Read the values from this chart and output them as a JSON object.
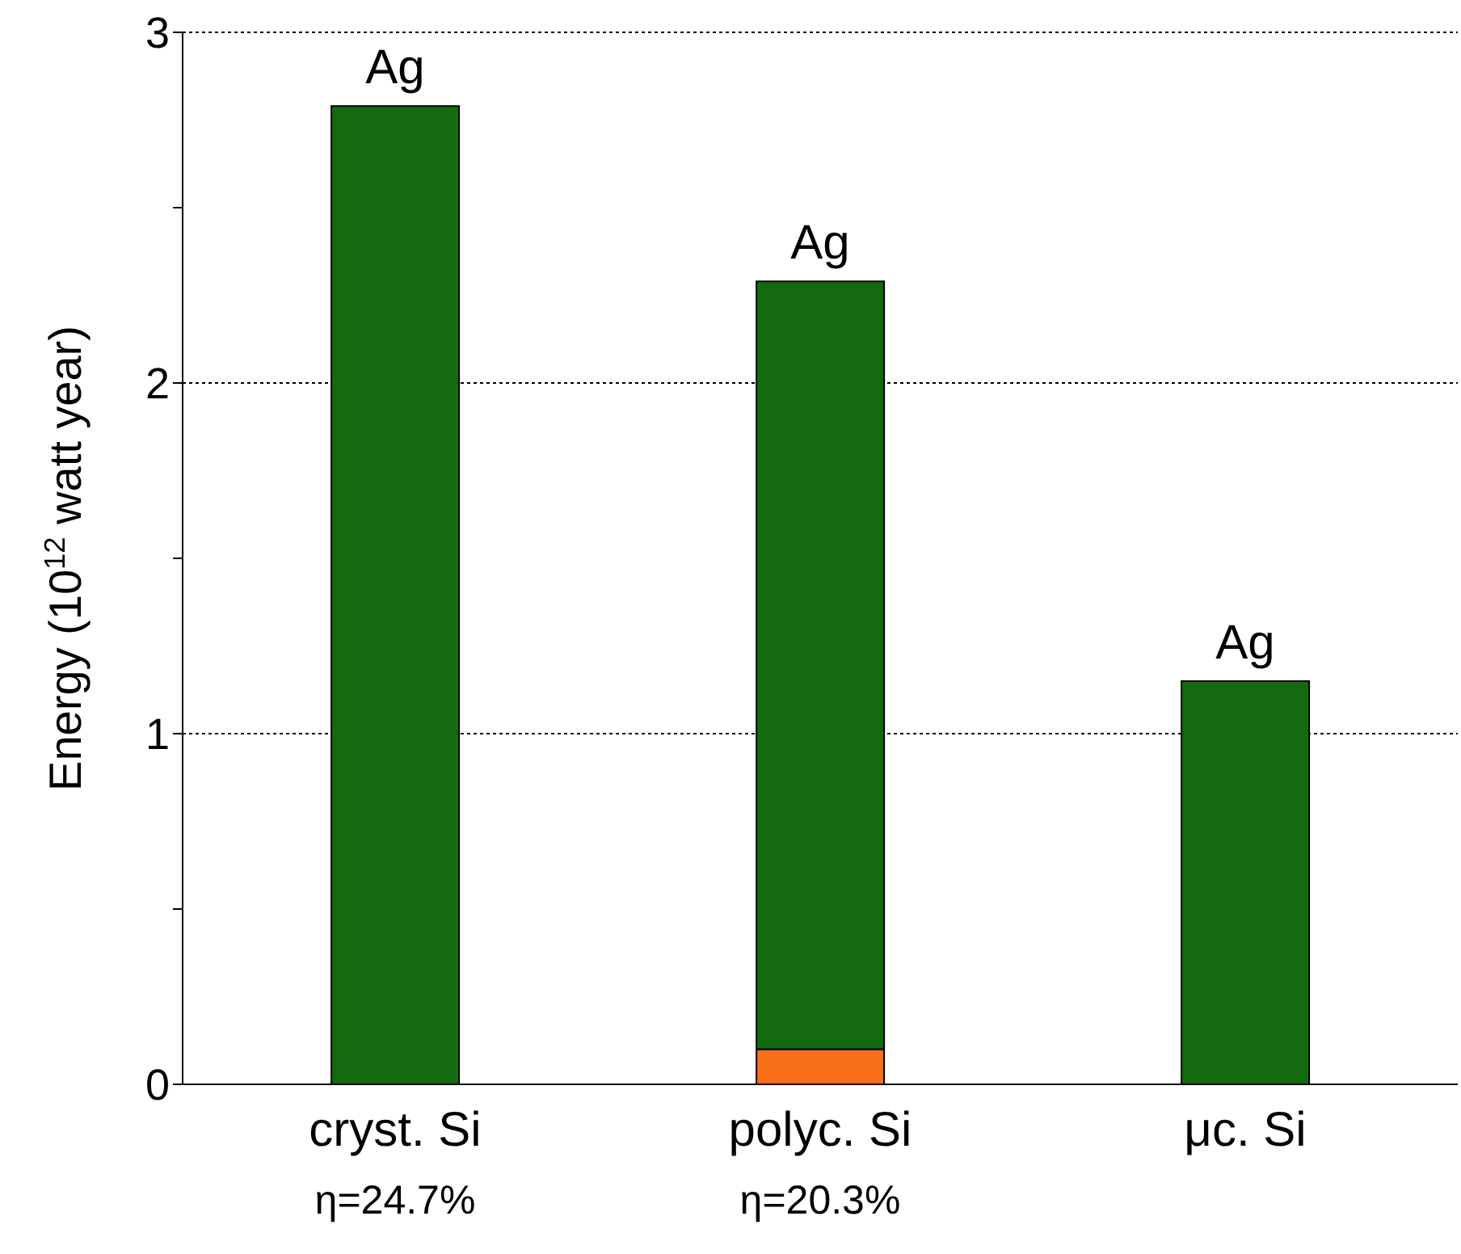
{
  "chart_data": {
    "type": "bar",
    "ylabel": "Energy (10$^{12}$ watt year)",
    "categories": [
      "cryst. Si\nη=24.7%",
      "polyc. Si\nη=20.3%",
      "μc. Si"
    ],
    "stacked": true,
    "series": [
      {
        "color": "#f76f18",
        "values": [
          null,
          0.1,
          null
        ]
      },
      {
        "color": "#146a0e",
        "values": [
          2.79,
          2.19,
          1.15
        ]
      }
    ],
    "ylim": [
      0,
      3
    ],
    "yticks": [
      0,
      {
        "value": 0.5,
        "label": null
      },
      1,
      {
        "value": 1.5,
        "label": null
      },
      2,
      {
        "value": 2.5,
        "label": null
      },
      3
    ],
    "grid": "y",
    "annotations": [
      {
        "text": "Ag",
        "x": "cryst. Si\nη=24.7%",
        "y": 2.79
      },
      {
        "text": "Ag",
        "x": "polyc. Si\nη=20.3%",
        "y": 2.29
      },
      {
        "text": "Ag",
        "x": "μc. Si",
        "y": 1.15
      }
    ]
  }
}
